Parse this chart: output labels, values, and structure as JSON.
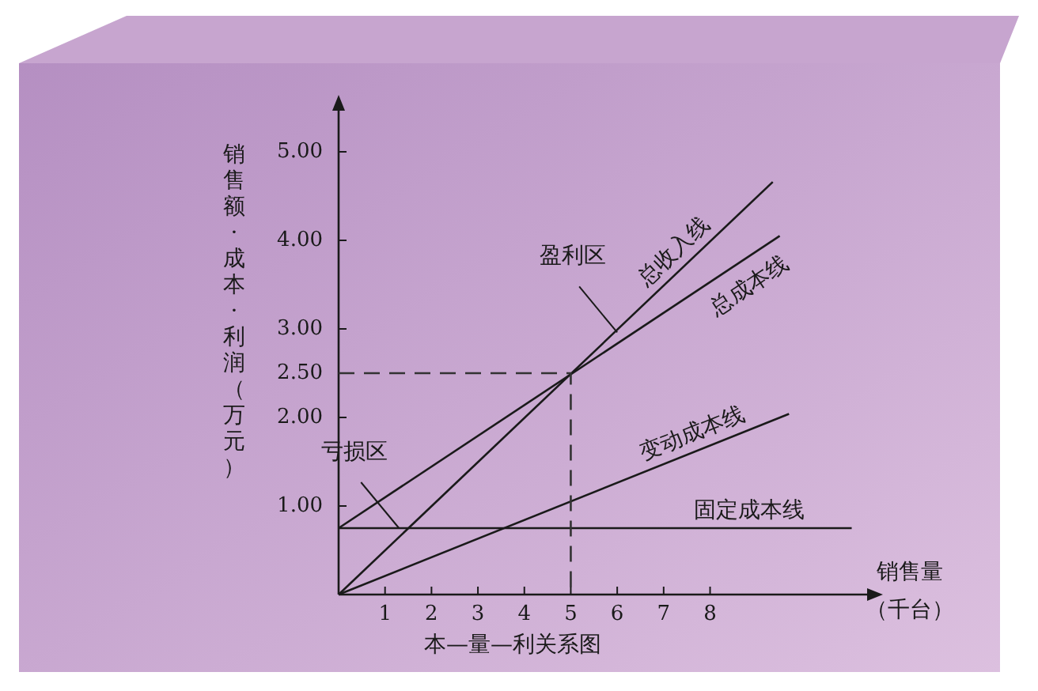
{
  "chart_data": {
    "type": "line",
    "title": "本—量—利关系图",
    "xlabel": "销售量（千台）",
    "ylabel": "销售额·成本·利润（万元）",
    "xlim": [
      0,
      11.45
    ],
    "ylim": [
      0,
      5.5
    ],
    "xticks": [
      1,
      2,
      3,
      4,
      5,
      6,
      7,
      8
    ],
    "yticks": [
      {
        "value": 1,
        "label": "1.00"
      },
      {
        "value": 2,
        "label": "2.00"
      },
      {
        "value": 2.5,
        "label": "2.50"
      },
      {
        "value": 3,
        "label": "3.00"
      },
      {
        "value": 4,
        "label": "4.00"
      },
      {
        "value": 5,
        "label": "5.00"
      }
    ],
    "grid": false,
    "legend": false,
    "marker": "none",
    "series": [
      {
        "name": "总收入线",
        "color": "#1a1a1a",
        "x": [
          0,
          9.35
        ],
        "values": [
          0,
          4.66
        ]
      },
      {
        "name": "总成本线",
        "color": "#1a1a1a",
        "x": [
          0,
          9.5
        ],
        "values": [
          0.75,
          4.05
        ]
      },
      {
        "name": "变动成本线",
        "color": "#1a1a1a",
        "x": [
          0,
          9.7
        ],
        "values": [
          0,
          2.04
        ]
      },
      {
        "name": "固定成本线",
        "color": "#1a1a1a",
        "x": [
          0,
          11.05
        ],
        "values": [
          0.75,
          0.75
        ]
      },
      {
        "color": "#333333",
        "x": [
          0,
          5,
          5
        ],
        "values": [
          2.5,
          2.5,
          0
        ],
        "line_style": "dashed"
      }
    ],
    "annotations": [
      {
        "text": "盈利区",
        "x": 6.0,
        "y": 2.96
      },
      {
        "text": "亏损区",
        "x": 1.3,
        "y": 0.75
      }
    ]
  }
}
